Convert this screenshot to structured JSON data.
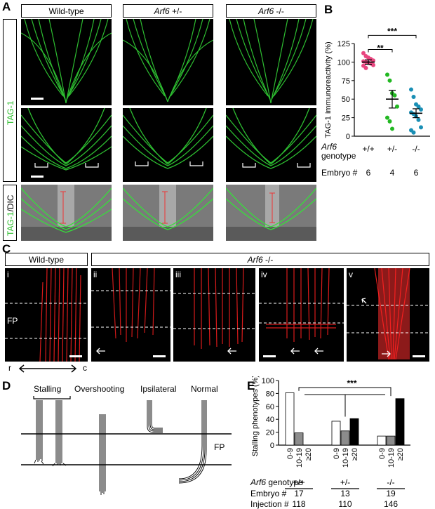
{
  "panels": {
    "A": "A",
    "B": "B",
    "C": "C",
    "D": "D",
    "E": "E"
  },
  "panel_a": {
    "columns": [
      "Wild-type",
      "Arf6",
      "+/-",
      "Arf6",
      "-/-"
    ],
    "row_labels": {
      "tag1": "TAG-1",
      "tag1_dic_green": "TAG-1",
      "tag1_dic_rest": "/DIC"
    }
  },
  "panel_c": {
    "headers": {
      "wt": "Wild-type",
      "ko_gene": "Arf6",
      "ko_genotype": "-/-"
    },
    "sub_labels": [
      "i",
      "ii",
      "iii",
      "iv",
      "v"
    ],
    "fp_label": "FP",
    "axis_r": "r",
    "axis_c": "c"
  },
  "panel_d": {
    "phenotypes": [
      "Stalling",
      "Overshooting",
      "Ipsilateral",
      "Normal"
    ],
    "fp_label": "FP"
  },
  "chart_data": [
    {
      "type": "scatter",
      "ylabel": "TAG-1 immunoreactivity (%)",
      "ylim": [
        0,
        125
      ],
      "yticks": [
        0,
        25,
        50,
        75,
        100,
        125
      ],
      "categories": [
        "+/+",
        "+/-",
        "-/-"
      ],
      "genotype_label_gene": "Arf6",
      "genotype_label_rest": "genotype",
      "embryo_label": "Embryo #",
      "embryo_counts": [
        "6",
        "4",
        "6"
      ],
      "significance": [
        "**",
        "***"
      ],
      "colors": [
        "#e8457f",
        "#22b822",
        "#1a8fb5"
      ],
      "series": [
        {
          "name": "+/+",
          "values": [
            112,
            108,
            106,
            104,
            102,
            101,
            100,
            99,
            98,
            96,
            95,
            92
          ],
          "mean": 100,
          "sem": 3
        },
        {
          "name": "+/-",
          "values": [
            83,
            75,
            58,
            55,
            40,
            25,
            20,
            10
          ],
          "mean": 50,
          "sem": 12
        },
        {
          "name": "-/-",
          "values": [
            63,
            53,
            43,
            40,
            36,
            32,
            30,
            27,
            22,
            12,
            8,
            5
          ],
          "mean": 31,
          "sem": 6
        }
      ]
    },
    {
      "type": "bar",
      "ylabel": "Stalling phenotypes (%)",
      "ylim": [
        0,
        100
      ],
      "yticks": [
        0,
        20,
        40,
        60,
        80,
        100
      ],
      "group_labels": [
        "+/+",
        "+/-",
        "-/-"
      ],
      "bin_labels": [
        "0-9",
        "10-19",
        "≥20"
      ],
      "bin_colors": [
        "#ffffff",
        "#8c8c8c",
        "#000000"
      ],
      "series": [
        {
          "group": "+/+",
          "values": [
            81,
            19,
            0
          ]
        },
        {
          "group": "+/-",
          "values": [
            37,
            22,
            41
          ]
        },
        {
          "group": "-/-",
          "values": [
            14,
            14,
            72
          ]
        }
      ],
      "significance": "***",
      "genotype_label_gene": "Arf6",
      "genotype_label_rest": "genotype",
      "embryo_label": "Embryo #",
      "embryo_counts": [
        "17",
        "13",
        "19"
      ],
      "injection_label": "Injection #",
      "injection_counts": [
        "118",
        "110",
        "146"
      ]
    }
  ]
}
